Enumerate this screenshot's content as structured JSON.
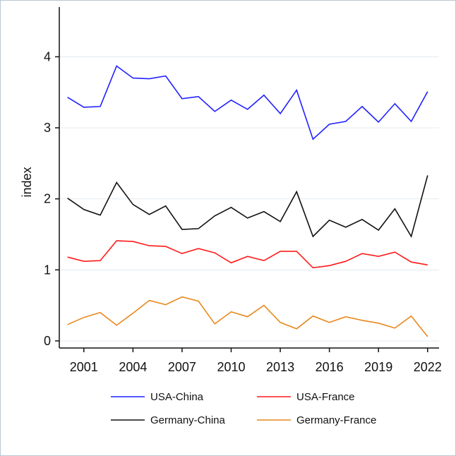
{
  "chart_data": {
    "type": "line",
    "title": "",
    "xlabel": "",
    "ylabel": "index",
    "x": [
      2000,
      2001,
      2002,
      2003,
      2004,
      2005,
      2006,
      2007,
      2008,
      2009,
      2010,
      2011,
      2012,
      2013,
      2014,
      2015,
      2016,
      2017,
      2018,
      2019,
      2020,
      2021,
      2022
    ],
    "xticks": [
      2001,
      2004,
      2007,
      2010,
      2013,
      2016,
      2019,
      2022
    ],
    "xlim": [
      1999.5,
      2022.7
    ],
    "ylim": [
      -0.1,
      4.7
    ],
    "yticks": [
      0,
      1,
      2,
      3,
      4
    ],
    "grid": "horizontal",
    "legend_position": "bottom",
    "series": [
      {
        "name": "USA-China",
        "color": "#2020ff",
        "values": [
          3.43,
          3.29,
          3.3,
          3.87,
          3.7,
          3.69,
          3.73,
          3.41,
          3.44,
          3.23,
          3.39,
          3.26,
          3.46,
          3.2,
          3.53,
          2.84,
          3.05,
          3.09,
          3.3,
          3.08,
          3.34,
          3.09,
          3.51
        ]
      },
      {
        "name": "USA-France",
        "color": "#ff1a1a",
        "values": [
          1.18,
          1.12,
          1.13,
          1.41,
          1.4,
          1.34,
          1.33,
          1.23,
          1.3,
          1.24,
          1.1,
          1.19,
          1.13,
          1.26,
          1.26,
          1.03,
          1.06,
          1.12,
          1.23,
          1.19,
          1.25,
          1.11,
          1.07
        ]
      },
      {
        "name": "Germany-China",
        "color": "#111111",
        "values": [
          2.01,
          1.85,
          1.77,
          2.23,
          1.92,
          1.78,
          1.9,
          1.57,
          1.58,
          1.76,
          1.88,
          1.73,
          1.82,
          1.68,
          2.1,
          1.47,
          1.7,
          1.6,
          1.71,
          1.56,
          1.86,
          1.47,
          2.33
        ]
      },
      {
        "name": "Germany-France",
        "color": "#e8891e",
        "values": [
          0.23,
          0.33,
          0.4,
          0.22,
          0.39,
          0.57,
          0.51,
          0.62,
          0.56,
          0.24,
          0.41,
          0.34,
          0.5,
          0.26,
          0.17,
          0.35,
          0.26,
          0.34,
          0.29,
          0.25,
          0.18,
          0.35,
          0.06
        ]
      }
    ]
  }
}
